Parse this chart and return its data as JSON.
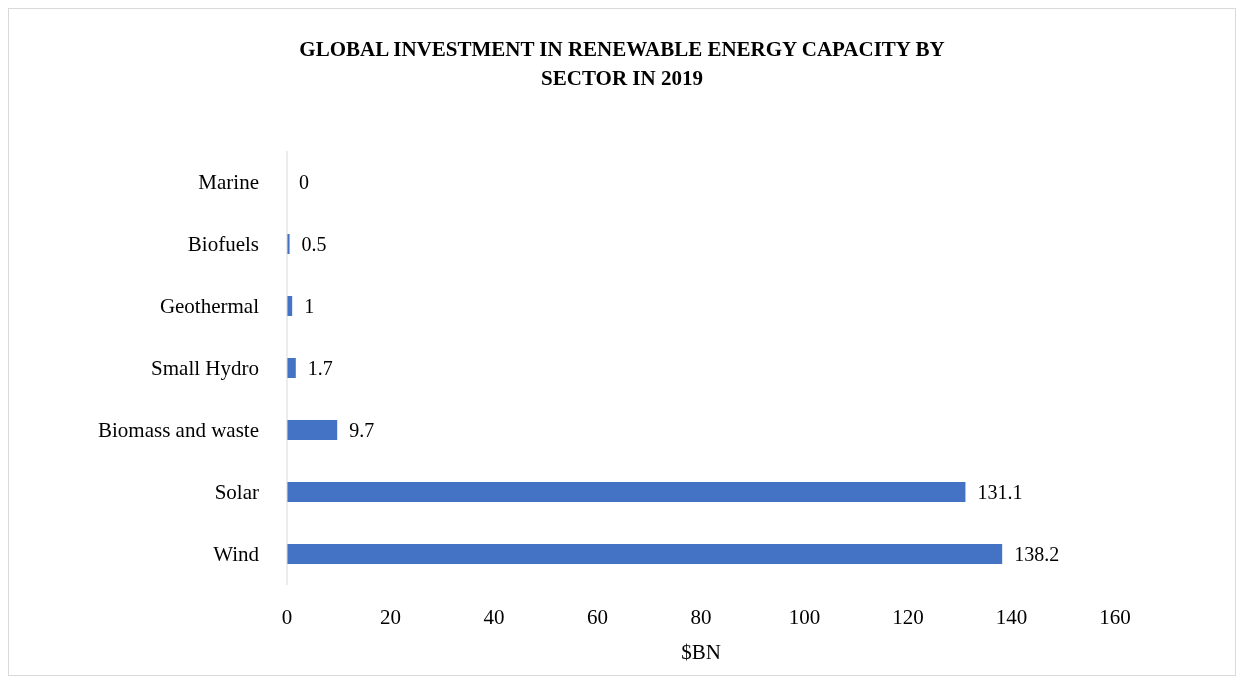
{
  "chart_data": {
    "type": "bar",
    "orientation": "horizontal",
    "title": "GLOBAL INVESTMENT IN RENEWABLE ENERGY CAPACITY BY SECTOR IN 2019",
    "xlabel": "$BN",
    "categories": [
      "Marine",
      "Biofuels",
      "Geothermal",
      "Small Hydro",
      "Biomass and waste",
      "Solar",
      "Wind"
    ],
    "values": [
      0,
      0.5,
      1,
      1.7,
      9.7,
      131.1,
      138.2
    ],
    "color": "#4472c4",
    "xlim": [
      0,
      160
    ],
    "xticks": [
      0,
      20,
      40,
      60,
      80,
      100,
      120,
      140,
      160
    ],
    "grid": false,
    "data_labels": true,
    "legend": false
  }
}
